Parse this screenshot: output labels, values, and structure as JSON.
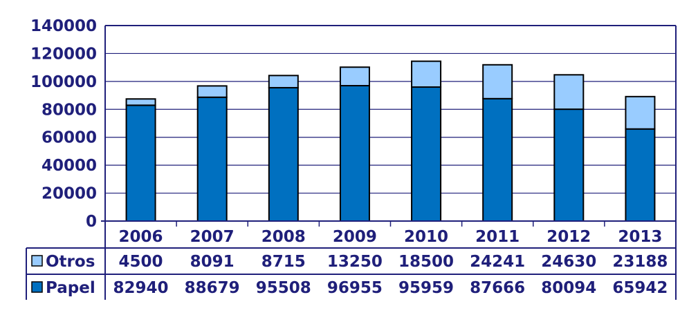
{
  "chart_data": {
    "type": "bar",
    "stacked": true,
    "categories": [
      "2006",
      "2007",
      "2008",
      "2009",
      "2010",
      "2011",
      "2012",
      "2013"
    ],
    "series": [
      {
        "name": "Papel",
        "values": [
          82940,
          88679,
          95508,
          96955,
          95959,
          87666,
          80094,
          65942
        ],
        "color": "#0070C0"
      },
      {
        "name": "Otros",
        "values": [
          4500,
          8091,
          8715,
          13250,
          18500,
          24241,
          24630,
          23188
        ],
        "color": "#99CCFF"
      }
    ],
    "ylim": [
      0,
      140000
    ],
    "yticks": [
      "0",
      "20000",
      "40000",
      "60000",
      "80000",
      "100000",
      "120000",
      "140000"
    ],
    "grid": true,
    "legend": "data-table",
    "data_table_rows": [
      {
        "name": "Otros",
        "values": [
          "4500",
          "8091",
          "8715",
          "13250",
          "18500",
          "24241",
          "24630",
          "23188"
        ]
      },
      {
        "name": "Papel",
        "values": [
          "82940",
          "88679",
          "95508",
          "96955",
          "95959",
          "87666",
          "80094",
          "65942"
        ]
      }
    ],
    "colors": {
      "text": "#1f1f7a",
      "axis": "#1f1f7a",
      "bar_outline": "#000000"
    }
  }
}
